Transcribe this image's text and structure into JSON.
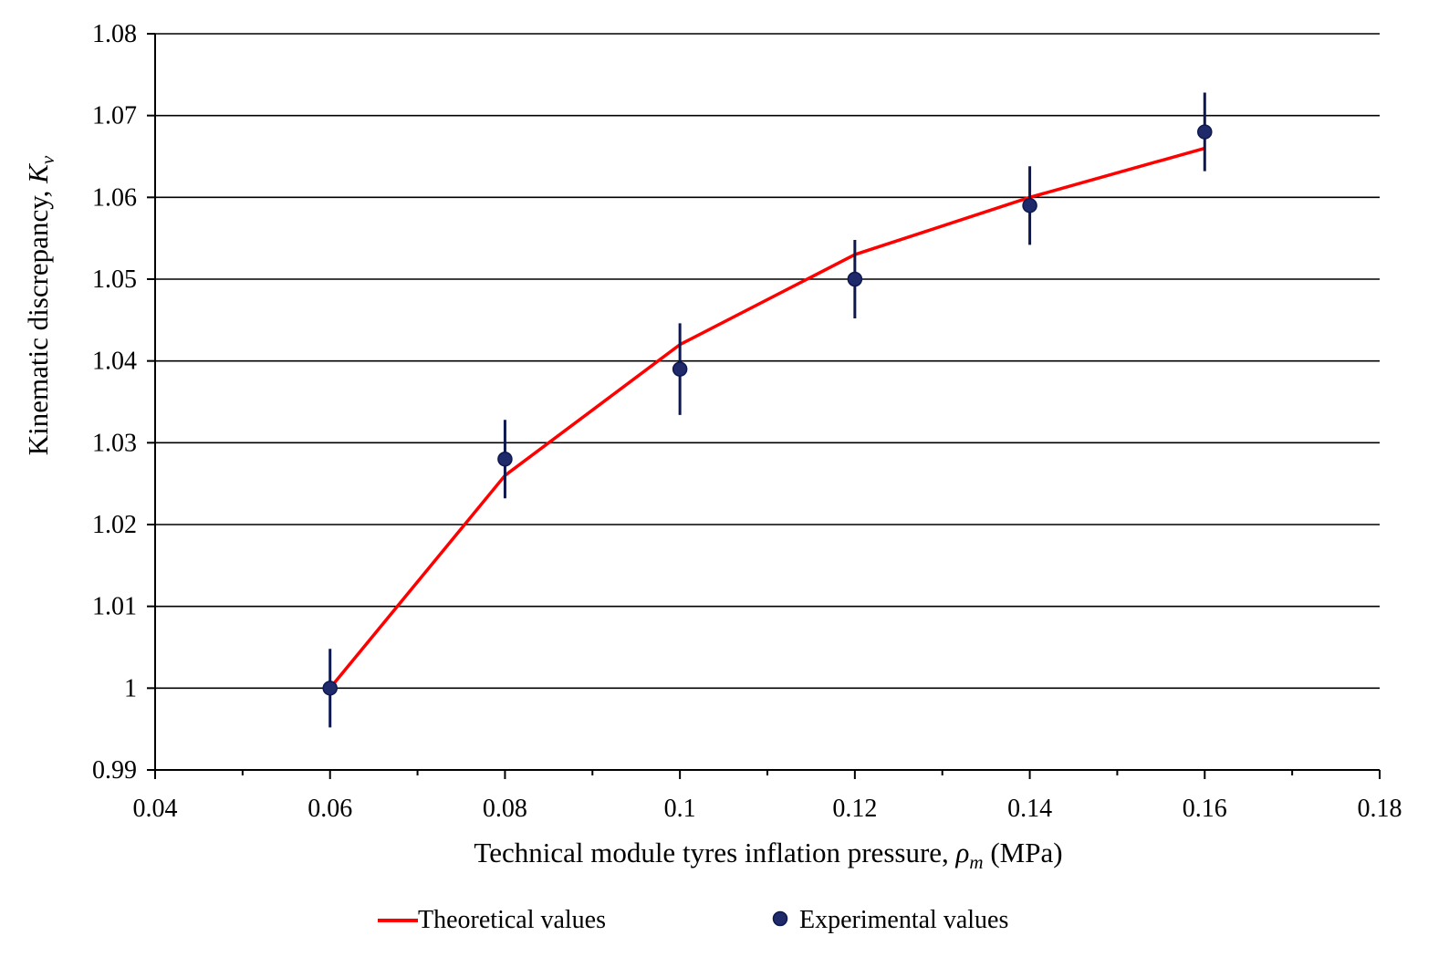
{
  "chart_data": {
    "type": "line",
    "xlabel": {
      "text": "Technical module tyres inflation pressure, ",
      "symbol": "ρ",
      "subscript": "m",
      "unit": " (MPa)"
    },
    "ylabel": {
      "text": "Kinematic discrepancy, ",
      "symbol": "K",
      "subscript": "v"
    },
    "xlim": [
      0.04,
      0.18
    ],
    "ylim": [
      0.99,
      1.08
    ],
    "x_ticks": [
      0.04,
      0.06,
      0.08,
      0.1,
      0.12,
      0.14,
      0.16,
      0.18
    ],
    "x_tick_labels": [
      "0.04",
      "0.06",
      "0.08",
      "0.1",
      "0.12",
      "0.14",
      "0.16",
      "0.18"
    ],
    "x_minor_step": 0.01,
    "y_ticks": [
      0.99,
      1.0,
      1.01,
      1.02,
      1.03,
      1.04,
      1.05,
      1.06,
      1.07,
      1.08
    ],
    "y_tick_labels": [
      "0.99",
      "1",
      "1.01",
      "1.02",
      "1.03",
      "1.04",
      "1.05",
      "1.06",
      "1.07",
      "1.08"
    ],
    "grid": "horizontal",
    "legend_position": "bottom",
    "series": [
      {
        "name": "Theoretical values",
        "kind": "line",
        "color": "#ff0000",
        "x": [
          0.06,
          0.08,
          0.1,
          0.12,
          0.14,
          0.16
        ],
        "y": [
          1.0,
          1.026,
          1.042,
          1.053,
          1.06,
          1.066
        ]
      },
      {
        "name": "Experimental values",
        "kind": "scatter",
        "color": "#1f2a6b",
        "error_color": "#0d1850",
        "x": [
          0.06,
          0.08,
          0.1,
          0.12,
          0.14,
          0.16
        ],
        "y": [
          1.0,
          1.028,
          1.039,
          1.05,
          1.059,
          1.068
        ],
        "error": [
          0.0048,
          0.0048,
          0.0056,
          0.0048,
          0.0048,
          0.0048
        ]
      }
    ]
  }
}
